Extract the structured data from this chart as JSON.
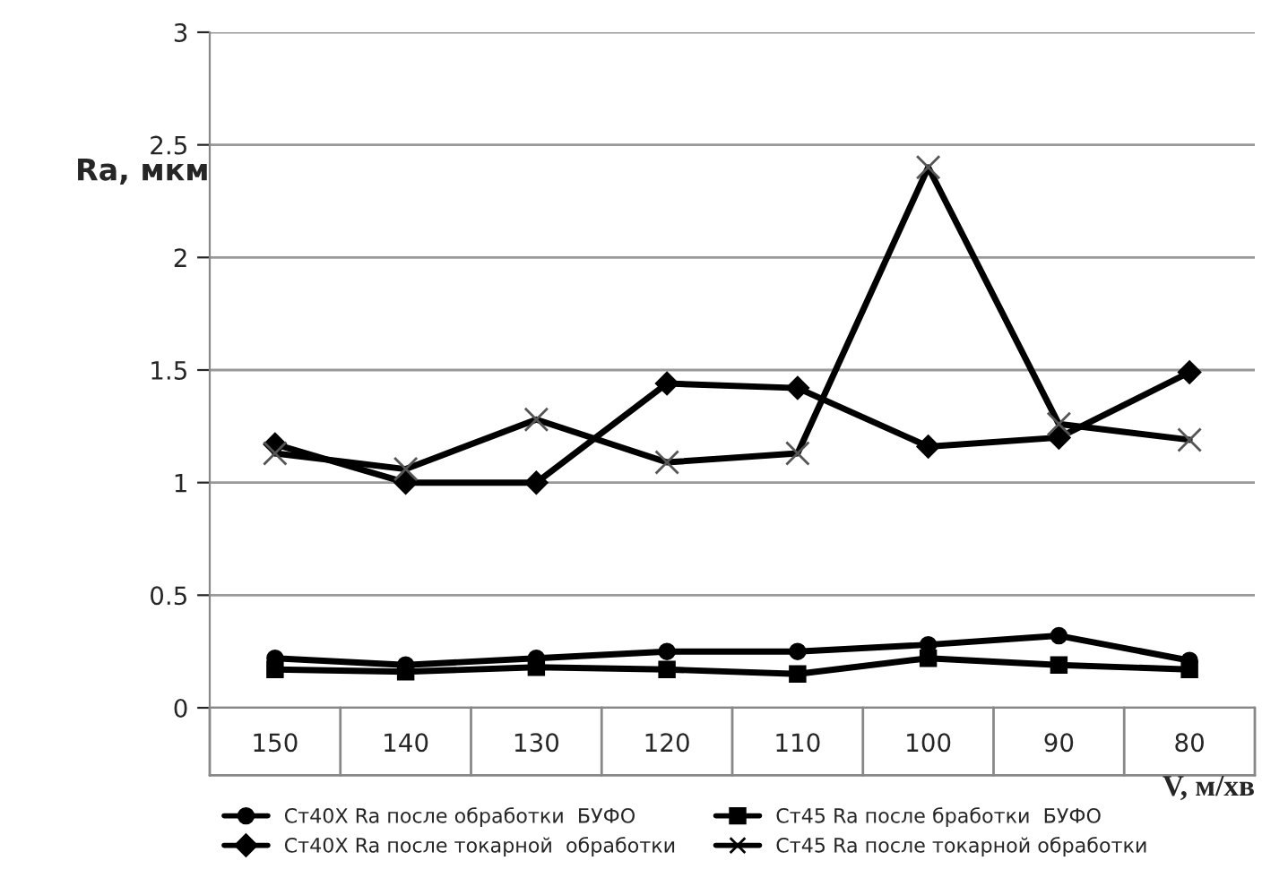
{
  "chart_data": {
    "type": "line",
    "ylabel": "Ra, мкм",
    "xlabel": "V, м/хв",
    "categories": [
      "150",
      "140",
      "130",
      "120",
      "110",
      "100",
      "90",
      "80"
    ],
    "series": [
      {
        "name": "Ст40Х Ra после обработки  БУФО",
        "color": "#000000",
        "marker": "circle",
        "values": [
          0.22,
          0.19,
          0.22,
          0.25,
          0.25,
          0.28,
          0.32,
          0.21
        ]
      },
      {
        "name": "Ст45 Ra после бработки  БУФО",
        "color": "#000000",
        "marker": "square",
        "values": [
          0.17,
          0.16,
          0.18,
          0.17,
          0.15,
          0.22,
          0.19,
          0.17
        ]
      },
      {
        "name": "Ст40Х Ra после токарной  обработки",
        "color": "#000000",
        "marker": "diamond",
        "values": [
          1.17,
          1.0,
          1.0,
          1.44,
          1.42,
          1.16,
          1.2,
          1.49
        ]
      },
      {
        "name": "Ст45 Ra после токарной обработки",
        "color": "#000000",
        "marker": "cross",
        "values": [
          1.13,
          1.06,
          1.28,
          1.09,
          1.13,
          2.4,
          1.26,
          1.19
        ]
      }
    ],
    "ylim": [
      0,
      3
    ],
    "yticks": [
      0,
      0.5,
      1,
      1.5,
      2,
      2.5,
      3
    ],
    "grid": "y",
    "legend": "bottom"
  }
}
